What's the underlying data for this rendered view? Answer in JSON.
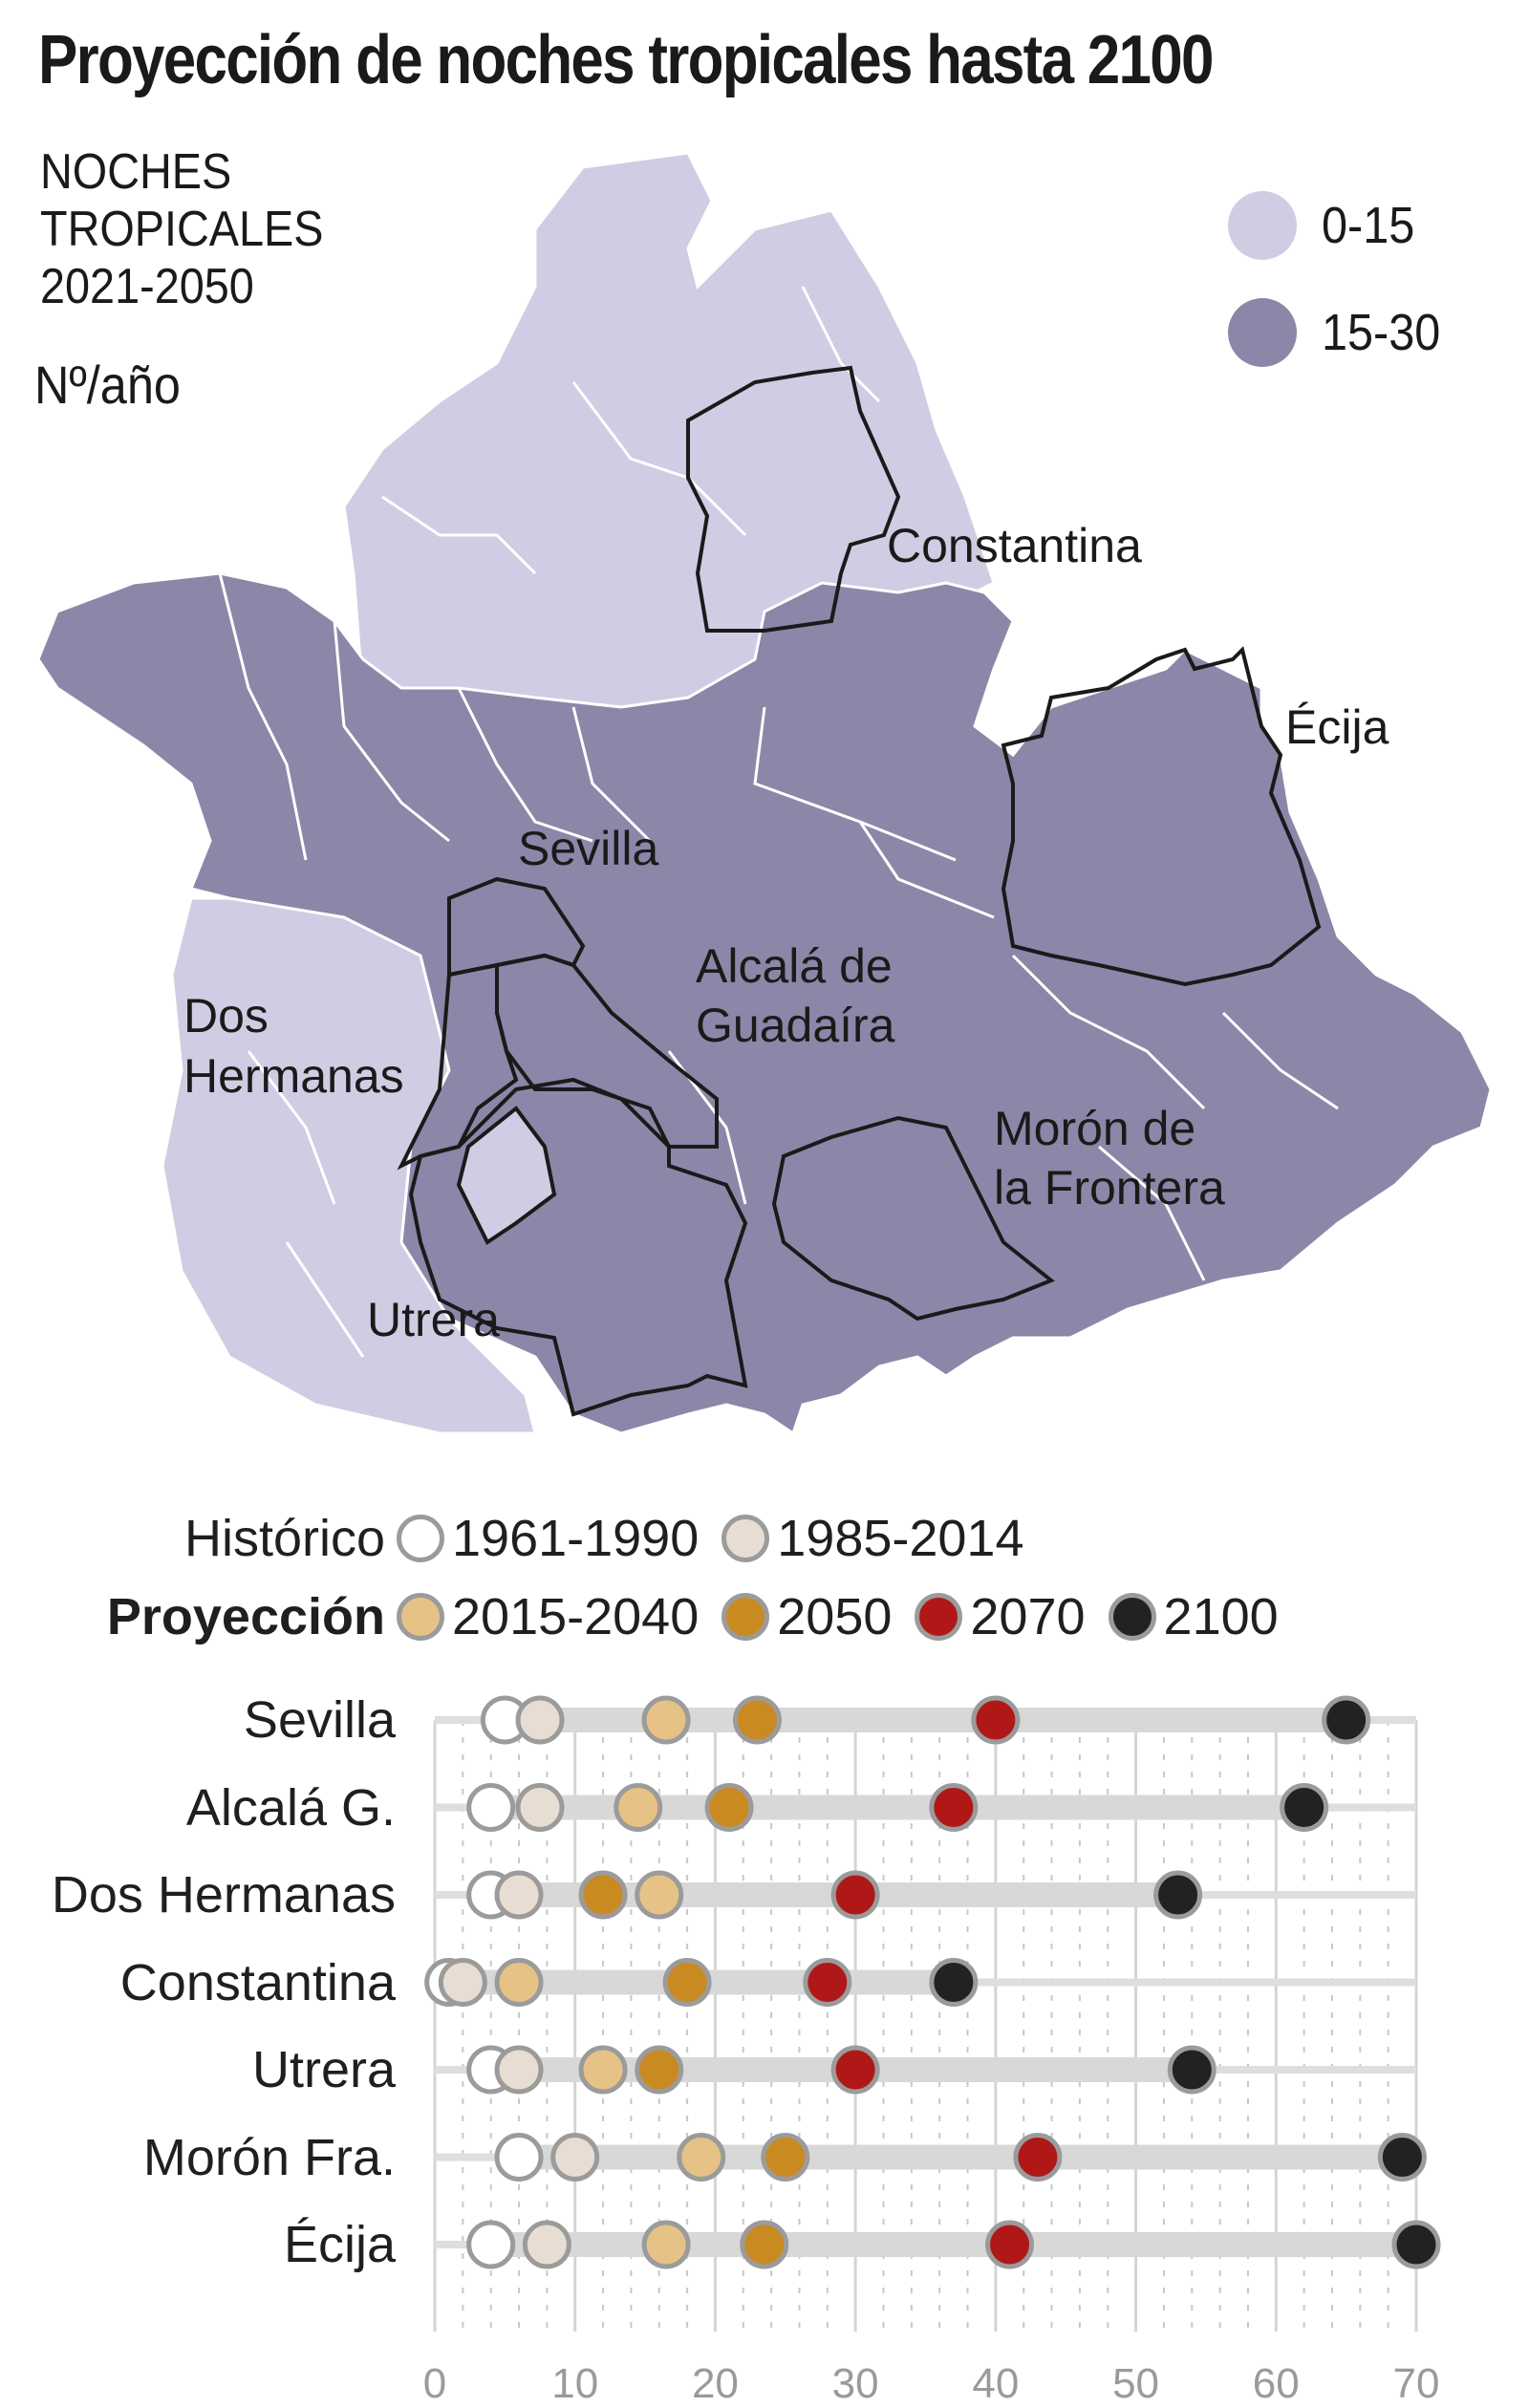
{
  "title": "Proyección de noches tropicales hasta 2100",
  "map": {
    "heading_lines": [
      "NOCHES",
      "TROPICALES",
      "2021-2050"
    ],
    "unit": "Nº/año",
    "legend": [
      {
        "label": "0-15",
        "color": "#cfcde3"
      },
      {
        "label": "15-30",
        "color": "#8b87a8"
      }
    ],
    "highlighted_municipalities": [
      {
        "name_lines": [
          "Constantina"
        ]
      },
      {
        "name_lines": [
          "Écija"
        ]
      },
      {
        "name_lines": [
          "Sevilla"
        ]
      },
      {
        "name_lines": [
          "Alcalá de",
          "Guadaíra"
        ]
      },
      {
        "name_lines": [
          "Dos",
          "Hermanas"
        ]
      },
      {
        "name_lines": [
          "Morón de",
          "la Frontera"
        ]
      },
      {
        "name_lines": [
          "Utrera"
        ]
      }
    ]
  },
  "legend": {
    "historico_label": "Histórico",
    "proyeccion_label": "Proyección",
    "historico": [
      {
        "label": "1961-1990",
        "color": "#ffffff"
      },
      {
        "label": "1985-2014",
        "color": "#e8ddd2"
      }
    ],
    "proyeccion": [
      {
        "label": "2015-2040",
        "color": "#e6c286"
      },
      {
        "label": "2050",
        "color": "#c98a22"
      },
      {
        "label": "2070",
        "color": "#b01818"
      },
      {
        "label": "2100",
        "color": "#222222"
      }
    ]
  },
  "chart_data": {
    "type": "scatter",
    "subtype": "dot-plot",
    "title": "Proyección de noches tropicales hasta 2100",
    "xlabel": "",
    "ylabel": "",
    "xlim": [
      0,
      70
    ],
    "x_ticks": [
      0,
      10,
      20,
      30,
      40,
      50,
      60,
      70
    ],
    "grid": true,
    "legend_position": "top",
    "categories": [
      "Sevilla",
      "Alcalá G.",
      "Dos Hermanas",
      "Constantina",
      "Utrera",
      "Morón Fra.",
      "Écija"
    ],
    "series": [
      {
        "name": "1961-1990",
        "group": "Histórico",
        "color": "#ffffff",
        "values": [
          5,
          4,
          4,
          1,
          4,
          6,
          4
        ]
      },
      {
        "name": "1985-2014",
        "group": "Histórico",
        "color": "#e8ddd2",
        "values": [
          7.5,
          7.5,
          6,
          2,
          6,
          10,
          8
        ]
      },
      {
        "name": "2015-2040",
        "group": "Proyección",
        "color": "#e6c286",
        "values": [
          16.5,
          14.5,
          16,
          6,
          12,
          19,
          16.5
        ]
      },
      {
        "name": "2050",
        "group": "Proyección",
        "color": "#c98a22",
        "values": [
          23,
          21,
          12,
          18,
          16,
          25,
          23.5
        ]
      },
      {
        "name": "2070",
        "group": "Proyección",
        "color": "#b01818",
        "values": [
          40,
          37,
          30,
          28,
          30,
          43,
          41
        ]
      },
      {
        "name": "2100",
        "group": "Proyección",
        "color": "#222222",
        "values": [
          65,
          62,
          53,
          37,
          54,
          69,
          70
        ]
      }
    ]
  }
}
